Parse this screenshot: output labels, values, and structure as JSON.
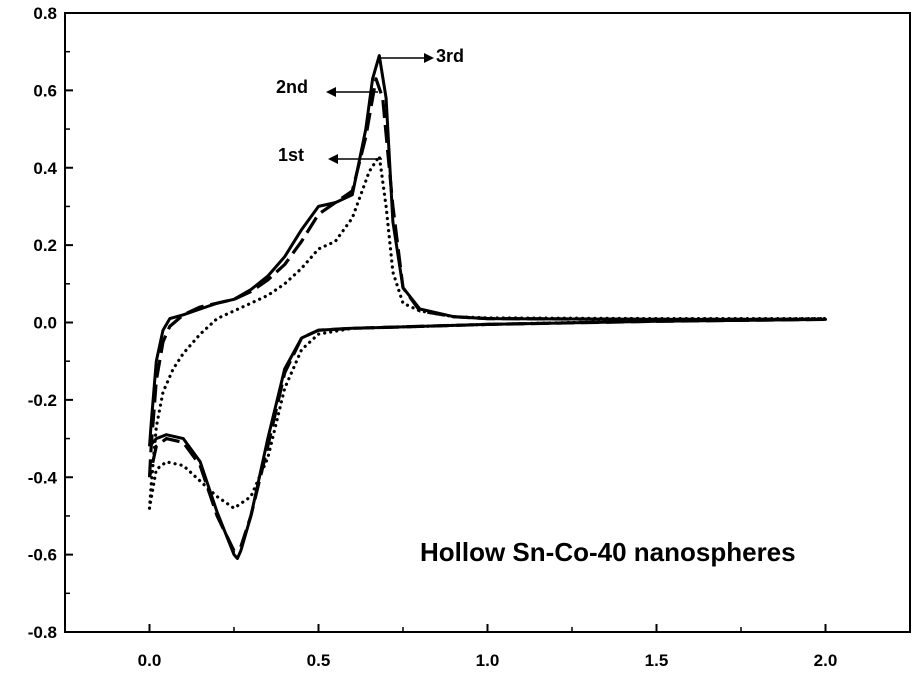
{
  "chart_data": {
    "type": "line",
    "title": "",
    "xlabel": "",
    "ylabel": "",
    "xlim": [
      -0.25,
      2.25
    ],
    "ylim": [
      -0.8,
      0.8
    ],
    "xticks": [
      0.0,
      0.5,
      1.0,
      1.5,
      2.0
    ],
    "xtick_labels": [
      "0.0",
      "0.5",
      "1.0",
      "1.5",
      "2.0"
    ],
    "yticks": [
      -0.8,
      -0.6,
      -0.4,
      -0.2,
      0.0,
      0.2,
      0.4,
      0.6,
      0.8
    ],
    "ytick_labels": [
      "-0.8",
      "-0.6",
      "-0.4",
      "-0.2",
      "0.0",
      "0.2",
      "0.4",
      "0.6",
      "0.8"
    ],
    "grid": false,
    "legend": "none",
    "annotation_text": "Hollow Sn-Co-40 nanospheres",
    "series": [
      {
        "label": "1st",
        "style": "dotted",
        "x": [
          0.0,
          0.005,
          0.02,
          0.04,
          0.07,
          0.1,
          0.15,
          0.2,
          0.25,
          0.3,
          0.35,
          0.4,
          0.45,
          0.5,
          0.55,
          0.6,
          0.65,
          0.68,
          0.7,
          0.72,
          0.75,
          0.8,
          0.9,
          1.0,
          1.5,
          2.0,
          1.5,
          1.0,
          0.8,
          0.6,
          0.5,
          0.45,
          0.4,
          0.35,
          0.3,
          0.25,
          0.2,
          0.15,
          0.1,
          0.05,
          0.02,
          0.0
        ],
        "y": [
          -0.48,
          -0.42,
          -0.27,
          -0.18,
          -0.12,
          -0.08,
          -0.03,
          0.01,
          0.03,
          0.05,
          0.07,
          0.1,
          0.14,
          0.19,
          0.21,
          0.27,
          0.39,
          0.43,
          0.3,
          0.13,
          0.05,
          0.03,
          0.015,
          0.012,
          0.01,
          0.01,
          0.005,
          -0.005,
          -0.01,
          -0.015,
          -0.03,
          -0.07,
          -0.17,
          -0.35,
          -0.45,
          -0.48,
          -0.45,
          -0.41,
          -0.37,
          -0.36,
          -0.38,
          -0.48
        ]
      },
      {
        "label": "2nd",
        "style": "dashed",
        "x": [
          0.0,
          0.005,
          0.02,
          0.04,
          0.06,
          0.1,
          0.15,
          0.2,
          0.25,
          0.3,
          0.35,
          0.4,
          0.45,
          0.5,
          0.55,
          0.6,
          0.64,
          0.67,
          0.69,
          0.72,
          0.75,
          0.8,
          0.9,
          1.0,
          1.5,
          2.0,
          1.5,
          1.0,
          0.8,
          0.6,
          0.5,
          0.45,
          0.4,
          0.35,
          0.3,
          0.27,
          0.25,
          0.2,
          0.15,
          0.1,
          0.05,
          0.02,
          0.0
        ],
        "y": [
          -0.4,
          -0.32,
          -0.15,
          -0.05,
          -0.01,
          0.02,
          0.04,
          0.05,
          0.06,
          0.08,
          0.11,
          0.15,
          0.21,
          0.28,
          0.31,
          0.34,
          0.48,
          0.63,
          0.58,
          0.3,
          0.09,
          0.03,
          0.015,
          0.01,
          0.008,
          0.008,
          0.003,
          -0.005,
          -0.01,
          -0.015,
          -0.02,
          -0.04,
          -0.13,
          -0.32,
          -0.5,
          -0.58,
          -0.59,
          -0.5,
          -0.37,
          -0.31,
          -0.3,
          -0.32,
          -0.4
        ]
      },
      {
        "label": "3rd",
        "style": "solid",
        "x": [
          0.0,
          0.005,
          0.02,
          0.04,
          0.06,
          0.1,
          0.15,
          0.2,
          0.25,
          0.3,
          0.35,
          0.4,
          0.45,
          0.5,
          0.55,
          0.6,
          0.64,
          0.66,
          0.68,
          0.7,
          0.72,
          0.75,
          0.8,
          0.9,
          1.0,
          1.5,
          2.0,
          1.5,
          1.0,
          0.8,
          0.6,
          0.5,
          0.45,
          0.4,
          0.35,
          0.3,
          0.27,
          0.26,
          0.25,
          0.2,
          0.15,
          0.1,
          0.05,
          0.02,
          0.0
        ],
        "y": [
          -0.32,
          -0.26,
          -0.1,
          -0.02,
          0.01,
          0.02,
          0.035,
          0.05,
          0.06,
          0.085,
          0.12,
          0.17,
          0.24,
          0.3,
          0.31,
          0.33,
          0.5,
          0.63,
          0.69,
          0.58,
          0.26,
          0.09,
          0.035,
          0.015,
          0.01,
          0.008,
          0.008,
          0.003,
          -0.005,
          -0.01,
          -0.015,
          -0.02,
          -0.04,
          -0.12,
          -0.3,
          -0.5,
          -0.59,
          -0.61,
          -0.6,
          -0.49,
          -0.36,
          -0.3,
          -0.29,
          -0.3,
          -0.32
        ]
      }
    ],
    "cycle_labels": [
      "1st",
      "2nd",
      "3rd"
    ]
  }
}
